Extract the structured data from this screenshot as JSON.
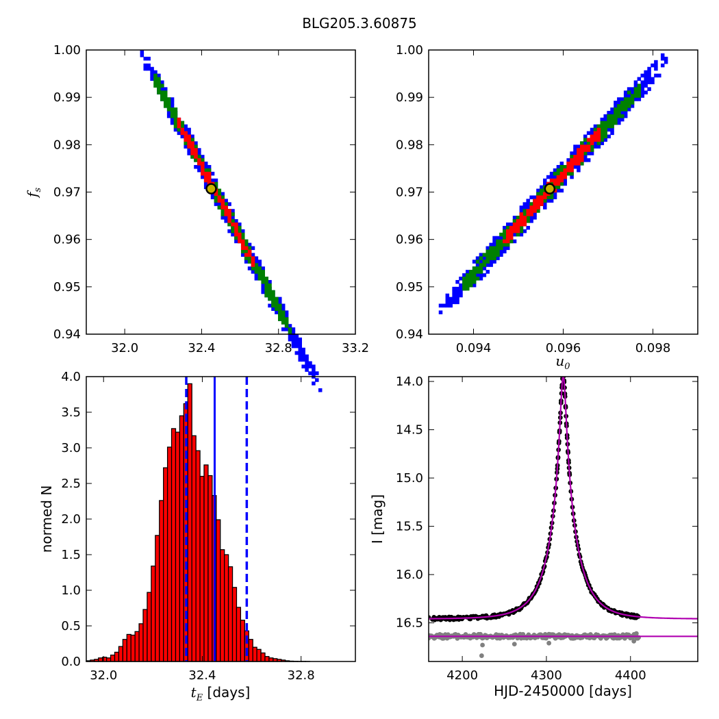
{
  "figure": {
    "title": "BLG205.3.60875"
  },
  "colors": {
    "blue": "#0000ff",
    "green": "#008000",
    "red": "#ff0000",
    "black": "#000000",
    "best_fill": "#c8b400",
    "model": "#b000b0",
    "resid": "#808080"
  },
  "chart_data": [
    {
      "id": "tE_fs",
      "type": "heatmap",
      "description_levels": [
        "blue",
        "green",
        "red"
      ],
      "xlim": [
        31.8,
        33.2
      ],
      "ylim": [
        0.94,
        1.0
      ],
      "xticks": [
        "32.0",
        "32.4",
        "32.8",
        "33.2"
      ],
      "yticks": [
        "0.94",
        "0.95",
        "0.96",
        "0.97",
        "0.98",
        "0.99",
        "1.00"
      ],
      "xlabel": "",
      "ylabel": "f_s",
      "ylabel_main": "f",
      "ylabel_sub": "s",
      "relation": {
        "x0": 32.45,
        "y0": 0.9707,
        "slope": -0.0755
      },
      "extent_blue": [
        32.08,
        33.02
      ],
      "halfwidth_blue": 0.0022,
      "halfwidth_green": 0.0014,
      "halfwidth_red": 0.0008,
      "extent_green": [
        32.14,
        32.86
      ],
      "extent_red": [
        32.27,
        32.66
      ],
      "best_fit": {
        "x": 32.45,
        "y": 0.9707
      }
    },
    {
      "id": "u0_fs",
      "type": "heatmap",
      "description_levels": [
        "blue",
        "green",
        "red"
      ],
      "xlim": [
        0.093,
        0.099
      ],
      "ylim": [
        0.94,
        1.0
      ],
      "xticks": [
        "0.094",
        "0.096",
        "0.098"
      ],
      "yticks": [
        "0.94",
        "0.95",
        "0.96",
        "0.97",
        "0.98",
        "0.99",
        "1.00"
      ],
      "xlabel": "u_0",
      "xlabel_main": "u",
      "xlabel_sub": "0",
      "relation": {
        "x0": 0.0957,
        "y0": 0.9707,
        "slope": 10.6
      },
      "extent_blue": [
        0.0932,
        0.0983
      ],
      "halfwidth_blue": 0.0024,
      "halfwidth_green": 0.0015,
      "halfwidth_red": 0.0009,
      "extent_green": [
        0.0937,
        0.0977
      ],
      "extent_red": [
        0.0946,
        0.0968
      ],
      "best_fit": {
        "x": 0.0957,
        "y": 0.9707
      }
    },
    {
      "id": "tE_hist",
      "type": "bar",
      "xlim": [
        31.93,
        33.02
      ],
      "ylim": [
        0.0,
        4.0
      ],
      "xticks": [
        "32.0",
        "32.4",
        "32.8"
      ],
      "yticks": [
        "0.0",
        "0.5",
        "1.0",
        "1.5",
        "2.0",
        "2.5",
        "3.0",
        "3.5",
        "4.0"
      ],
      "xlabel_sym": "t",
      "xlabel_sub": "E",
      "xlabel_unit": " [days]",
      "ylabel": "normed N",
      "bin_start": 31.93,
      "bin_width": 0.01645,
      "values": [
        0.01,
        0.02,
        0.03,
        0.05,
        0.06,
        0.05,
        0.09,
        0.13,
        0.21,
        0.31,
        0.38,
        0.37,
        0.42,
        0.53,
        0.73,
        0.97,
        1.34,
        1.77,
        2.26,
        2.72,
        3.01,
        3.27,
        3.22,
        3.45,
        3.62,
        3.9,
        3.17,
        2.96,
        2.6,
        2.76,
        2.61,
        2.33,
        1.99,
        1.57,
        1.5,
        1.33,
        1.04,
        0.76,
        0.58,
        0.43,
        0.31,
        0.2,
        0.17,
        0.12,
        0.07,
        0.05,
        0.04,
        0.03,
        0.02,
        0.01,
        0.005,
        0.003,
        0.002,
        0.002,
        0.001,
        0.0
      ],
      "median": 32.45,
      "lower": 32.335,
      "upper": 32.58
    },
    {
      "id": "lightcurve",
      "type": "scatter",
      "xlim": [
        4160,
        4480
      ],
      "ylim": [
        16.9,
        13.95
      ],
      "xticks": [
        "4200",
        "4300",
        "4400"
      ],
      "yticks": [
        "14.0",
        "14.5",
        "15.0",
        "15.5",
        "16.0",
        "16.5"
      ],
      "xlabel": "HJD-2450000 [days]",
      "ylabel": "I [mag]",
      "model": {
        "t0": 4320.0,
        "tE": 32.45,
        "u0": 0.0957,
        "Ibase": 16.46,
        "fs": 0.9707
      },
      "residual_level": 16.64,
      "data_end": 4410
    }
  ]
}
